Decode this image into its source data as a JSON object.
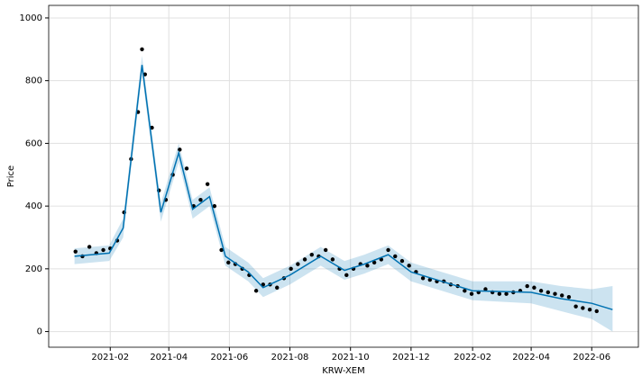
{
  "chart_data": {
    "type": "forecast",
    "xlabel": "KRW-XEM",
    "ylabel": "Price",
    "xlim": [
      "2020-12-01",
      "2022-07-18"
    ],
    "ylim": [
      -50,
      1040
    ],
    "yticks": [
      0,
      200,
      400,
      600,
      800,
      1000
    ],
    "xticks": [
      {
        "value": "2021-02-01",
        "label": "2021-02"
      },
      {
        "value": "2021-04-01",
        "label": "2021-04"
      },
      {
        "value": "2021-06-01",
        "label": "2021-06"
      },
      {
        "value": "2021-08-01",
        "label": "2021-08"
      },
      {
        "value": "2021-10-01",
        "label": "2021-10"
      },
      {
        "value": "2021-12-01",
        "label": "2021-12"
      },
      {
        "value": "2022-02-01",
        "label": "2022-02"
      },
      {
        "value": "2022-04-01",
        "label": "2022-04"
      },
      {
        "value": "2022-06-01",
        "label": "2022-06"
      }
    ],
    "grid": true,
    "observed": {
      "color": "#000000",
      "x": [
        "2020-12-28",
        "2021-01-04",
        "2021-01-11",
        "2021-01-18",
        "2021-01-25",
        "2021-02-01",
        "2021-02-08",
        "2021-02-15",
        "2021-02-22",
        "2021-03-01",
        "2021-03-05",
        "2021-03-08",
        "2021-03-15",
        "2021-03-22",
        "2021-03-29",
        "2021-04-05",
        "2021-04-12",
        "2021-04-19",
        "2021-04-26",
        "2021-05-03",
        "2021-05-10",
        "2021-05-17",
        "2021-05-24",
        "2021-05-31",
        "2021-06-07",
        "2021-06-14",
        "2021-06-21",
        "2021-06-28",
        "2021-07-05",
        "2021-07-12",
        "2021-07-19",
        "2021-07-26",
        "2021-08-02",
        "2021-08-09",
        "2021-08-16",
        "2021-08-23",
        "2021-08-30",
        "2021-09-06",
        "2021-09-13",
        "2021-09-20",
        "2021-09-27",
        "2021-10-04",
        "2021-10-11",
        "2021-10-18",
        "2021-10-25",
        "2021-11-01",
        "2021-11-08",
        "2021-11-15",
        "2021-11-22",
        "2021-11-29",
        "2021-12-06",
        "2021-12-13",
        "2021-12-20",
        "2021-12-27",
        "2022-01-03",
        "2022-01-10",
        "2022-01-17",
        "2022-01-24",
        "2022-01-31",
        "2022-02-07",
        "2022-02-14",
        "2022-02-21",
        "2022-02-28",
        "2022-03-07",
        "2022-03-14",
        "2022-03-21",
        "2022-03-28",
        "2022-04-04",
        "2022-04-11",
        "2022-04-18",
        "2022-04-25",
        "2022-05-02",
        "2022-05-09",
        "2022-05-16",
        "2022-05-23",
        "2022-05-30",
        "2022-06-06"
      ],
      "values": [
        255,
        240,
        270,
        250,
        260,
        265,
        290,
        380,
        550,
        700,
        900,
        820,
        650,
        450,
        420,
        500,
        580,
        520,
        400,
        420,
        470,
        400,
        260,
        220,
        215,
        200,
        180,
        130,
        150,
        150,
        140,
        170,
        200,
        215,
        230,
        245,
        240,
        260,
        230,
        200,
        180,
        200,
        215,
        210,
        220,
        230,
        260,
        240,
        225,
        210,
        190,
        170,
        165,
        160,
        160,
        150,
        145,
        130,
        120,
        125,
        135,
        125,
        120,
        120,
        125,
        130,
        145,
        140,
        130,
        125,
        120,
        115,
        110,
        80,
        75,
        70,
        65
      ]
    },
    "forecast": {
      "color": "#0072B2",
      "x": [
        "2020-12-27",
        "2021-01-31",
        "2021-02-14",
        "2021-03-05",
        "2021-03-24",
        "2021-04-11",
        "2021-04-25",
        "2021-05-12",
        "2021-05-28",
        "2021-06-20",
        "2021-07-05",
        "2021-08-01",
        "2021-09-01",
        "2021-09-25",
        "2021-10-15",
        "2021-11-08",
        "2021-12-01",
        "2022-01-01",
        "2022-02-01",
        "2022-04-01",
        "2022-05-01",
        "2022-06-01",
        "2022-06-22"
      ],
      "values": [
        240,
        250,
        330,
        850,
        380,
        570,
        390,
        430,
        240,
        190,
        140,
        180,
        240,
        195,
        215,
        245,
        190,
        160,
        130,
        125,
        105,
        90,
        70
      ],
      "lower": [
        215,
        225,
        300,
        820,
        350,
        540,
        360,
        400,
        210,
        160,
        110,
        150,
        210,
        165,
        185,
        215,
        160,
        130,
        100,
        90,
        65,
        40,
        0
      ],
      "upper": [
        265,
        275,
        360,
        880,
        410,
        600,
        420,
        460,
        270,
        220,
        170,
        210,
        270,
        225,
        245,
        275,
        220,
        190,
        160,
        160,
        145,
        135,
        145
      ]
    }
  }
}
